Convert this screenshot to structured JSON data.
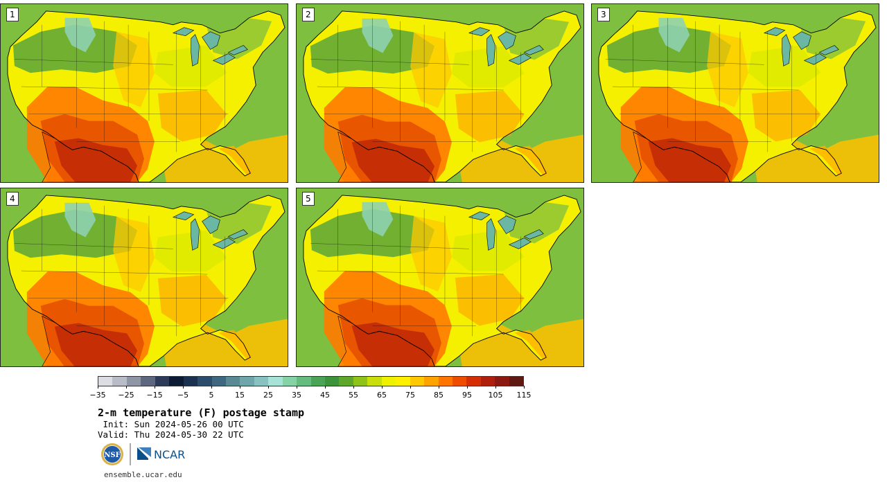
{
  "panels": [
    {
      "label": "1"
    },
    {
      "label": "2"
    },
    {
      "label": "3"
    },
    {
      "label": "4"
    },
    {
      "label": "5"
    }
  ],
  "colorbar": {
    "colors": [
      "#dcdde3",
      "#b8bcc6",
      "#8e95a5",
      "#5d6780",
      "#2e3b58",
      "#0c1a33",
      "#1b3150",
      "#2b4c6b",
      "#3f6780",
      "#598a94",
      "#6fa6aa",
      "#87c1c0",
      "#a6e3d6",
      "#84d2a6",
      "#66bc7e",
      "#4aa456",
      "#3c933a",
      "#5da72a",
      "#8ec41a",
      "#c8df0c",
      "#eef200",
      "#fff000",
      "#ffc800",
      "#ffa300",
      "#ff7500",
      "#ee4d00",
      "#d42e05",
      "#b01e0c",
      "#8c1910",
      "#601812"
    ],
    "tick_labels": [
      "−35",
      "−25",
      "−15",
      "−5",
      "5",
      "15",
      "25",
      "35",
      "45",
      "55",
      "65",
      "75",
      "85",
      "95",
      "105",
      "115"
    ]
  },
  "title": "2-m temperature (F) postage stamp",
  "init": " Init: Sun 2024-05-26 00 UTC",
  "valid": "Valid: Thu 2024-05-30 22 UTC",
  "logos": {
    "nsf": "NSF",
    "ncar": "NCAR"
  },
  "site": "ensemble.ucar.edu"
}
